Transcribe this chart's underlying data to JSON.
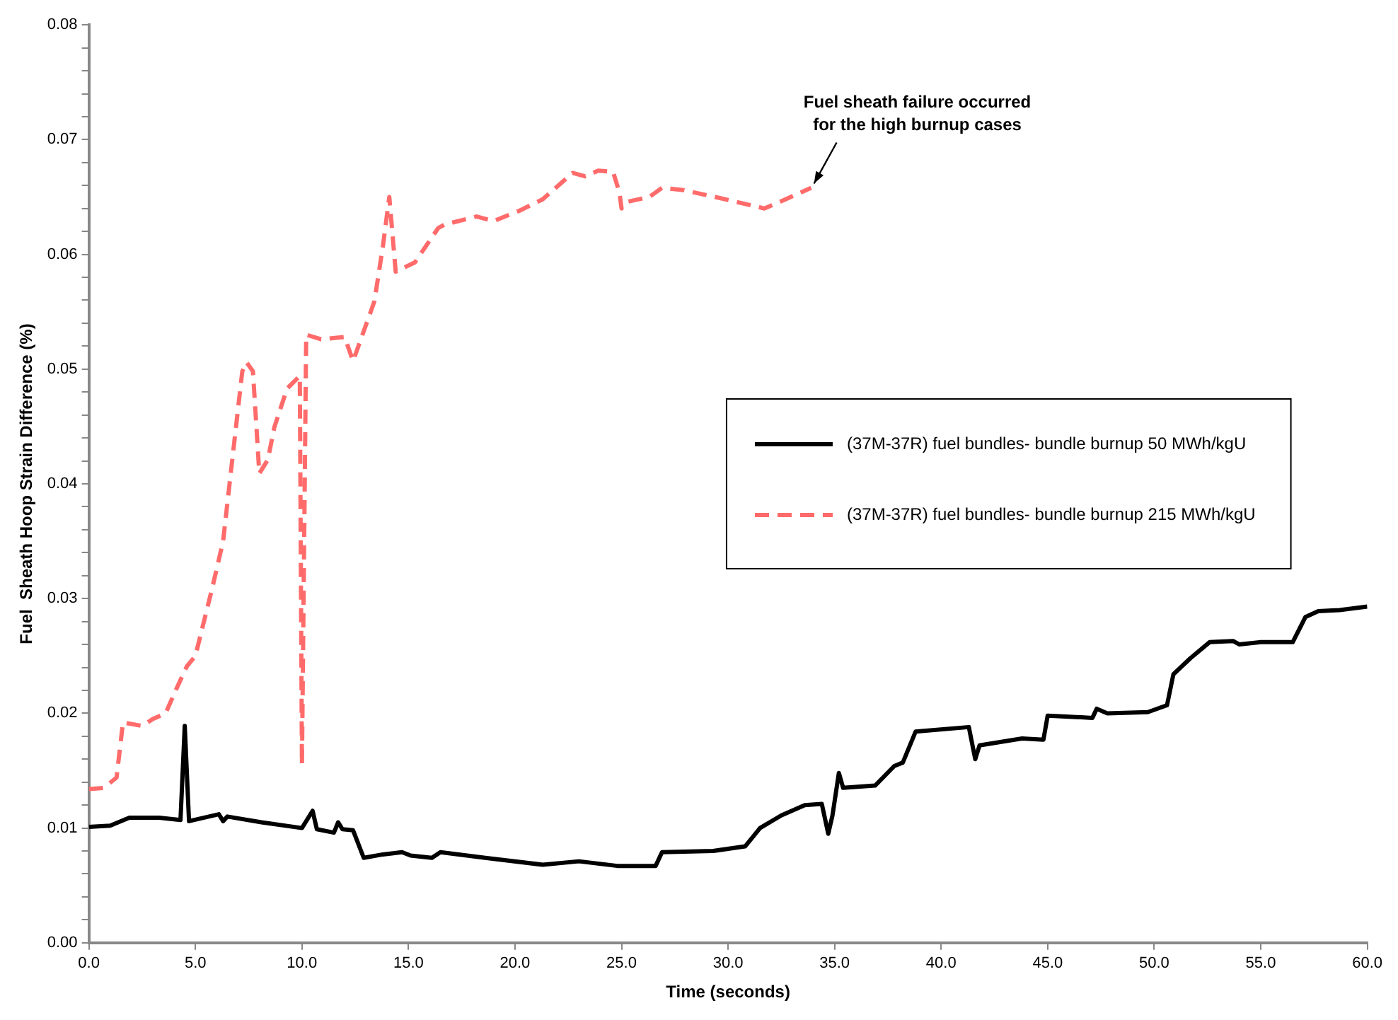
{
  "chart_data": {
    "type": "line",
    "xlabel": "Time (seconds)",
    "ylabel": "Fuel  Sheath Hoop Strain Difference (%)",
    "xlim": [
      0,
      60
    ],
    "xticks": [
      {
        "value": 0,
        "label": "0.0"
      },
      {
        "value": 5,
        "label": "5.0"
      },
      {
        "value": 10,
        "label": "10.0"
      },
      {
        "value": 15,
        "label": "15.0"
      },
      {
        "value": 20,
        "label": "20.0"
      },
      {
        "value": 25,
        "label": "25.0"
      },
      {
        "value": 30,
        "label": "30.0"
      },
      {
        "value": 35,
        "label": "35.0"
      },
      {
        "value": 40,
        "label": "40.0"
      },
      {
        "value": 45,
        "label": "45.0"
      },
      {
        "value": 50,
        "label": "50.0"
      },
      {
        "value": 55,
        "label": "55.0"
      },
      {
        "value": 60,
        "label": "60.0"
      }
    ],
    "ylim": [
      0,
      0.08
    ],
    "yticks": [
      {
        "value": 0,
        "label": "0.00"
      },
      {
        "value": 0.002,
        "label": null
      },
      {
        "value": 0.004,
        "label": null
      },
      {
        "value": 0.006,
        "label": null
      },
      {
        "value": 0.008,
        "label": null
      },
      {
        "value": 0.01,
        "label": "0.01"
      },
      {
        "value": 0.012,
        "label": null
      },
      {
        "value": 0.014,
        "label": null
      },
      {
        "value": 0.016,
        "label": null
      },
      {
        "value": 0.018,
        "label": null
      },
      {
        "value": 0.02,
        "label": "0.02"
      },
      {
        "value": 0.022,
        "label": null
      },
      {
        "value": 0.024,
        "label": null
      },
      {
        "value": 0.026,
        "label": null
      },
      {
        "value": 0.028,
        "label": null
      },
      {
        "value": 0.03,
        "label": "0.03"
      },
      {
        "value": 0.032,
        "label": null
      },
      {
        "value": 0.034,
        "label": null
      },
      {
        "value": 0.036,
        "label": null
      },
      {
        "value": 0.038,
        "label": null
      },
      {
        "value": 0.04,
        "label": "0.04"
      },
      {
        "value": 0.042,
        "label": null
      },
      {
        "value": 0.044,
        "label": null
      },
      {
        "value": 0.046,
        "label": null
      },
      {
        "value": 0.048,
        "label": null
      },
      {
        "value": 0.05,
        "label": "0.05"
      },
      {
        "value": 0.052,
        "label": null
      },
      {
        "value": 0.054,
        "label": null
      },
      {
        "value": 0.056,
        "label": null
      },
      {
        "value": 0.058,
        "label": null
      },
      {
        "value": 0.06,
        "label": "0.06"
      },
      {
        "value": 0.062,
        "label": null
      },
      {
        "value": 0.064,
        "label": null
      },
      {
        "value": 0.066,
        "label": null
      },
      {
        "value": 0.068,
        "label": null
      },
      {
        "value": 0.07,
        "label": "0.07"
      },
      {
        "value": 0.072,
        "label": null
      },
      {
        "value": 0.074,
        "label": null
      },
      {
        "value": 0.076,
        "label": null
      },
      {
        "value": 0.078,
        "label": null
      },
      {
        "value": 0.08,
        "label": "0.08"
      }
    ],
    "grid": false,
    "legend": "right",
    "marker": "none",
    "annotations": [
      {
        "text": "Fuel sheath failure occurred\nfor the high burnup cases",
        "x": 33.9,
        "y": 0.0658
      }
    ],
    "series": [
      {
        "name": "(37M-37R) fuel bundles- bundle burnup 50 MWh/kgU",
        "color": "#000000",
        "line_style": "solid",
        "x": [
          0,
          1,
          1.9,
          3.3,
          4.3,
          4.5,
          4.7,
          6.1,
          6.3,
          6.5,
          8.1,
          10,
          10.5,
          10.7,
          11.5,
          11.7,
          11.9,
          12.4,
          12.9,
          13.8,
          14.7,
          15.1,
          16.1,
          16.5,
          18.6,
          21.3,
          23,
          24.8,
          26.6,
          26.9,
          29.3,
          30.8,
          31.5,
          32.5,
          33.6,
          34.4,
          34.7,
          34.9,
          35.2,
          35.4,
          36.9,
          37.8,
          38.2,
          38.8,
          41.3,
          41.6,
          41.8,
          43.8,
          44.8,
          45,
          47.1,
          47.3,
          47.8,
          49.7,
          50.6,
          50.9,
          51.7,
          52.6,
          53.7,
          54,
          55,
          56.5,
          57.1,
          57.7,
          58.7,
          60
        ],
        "values": [
          0.0101,
          0.0102,
          0.0109,
          0.0109,
          0.0107,
          0.0189,
          0.0106,
          0.0112,
          0.0106,
          0.011,
          0.0105,
          0.01,
          0.0115,
          0.0099,
          0.0096,
          0.0105,
          0.0099,
          0.0098,
          0.0074,
          0.0077,
          0.0079,
          0.0076,
          0.0074,
          0.0079,
          0.0074,
          0.0068,
          0.0071,
          0.0067,
          0.0067,
          0.0079,
          0.008,
          0.0084,
          0.01,
          0.0111,
          0.012,
          0.0121,
          0.0095,
          0.0111,
          0.0148,
          0.0135,
          0.0137,
          0.0154,
          0.0157,
          0.0184,
          0.0188,
          0.016,
          0.0172,
          0.0178,
          0.0177,
          0.0198,
          0.0196,
          0.0204,
          0.02,
          0.0201,
          0.0207,
          0.0234,
          0.0248,
          0.0262,
          0.0263,
          0.026,
          0.0262,
          0.0262,
          0.0284,
          0.0289,
          0.029,
          0.0293
        ]
      },
      {
        "name": "(37M-37R) fuel bundles- bundle burnup 215 MWh/kgU",
        "color": "#ff6b6b",
        "line_style": "dashed",
        "x": [
          0,
          0.7,
          1.3,
          1.6,
          2.5,
          3,
          3.6,
          4.1,
          4.6,
          5,
          5.8,
          6.3,
          6.7,
          7.2,
          7.4,
          7.7,
          8,
          8.4,
          8.7,
          9.3,
          9.9,
          10,
          10.2,
          10.9,
          12,
          12.4,
          13.4,
          13.8,
          14.1,
          14.4,
          15.3,
          16.4,
          16.7,
          18.2,
          19,
          20.2,
          21.3,
          22.7,
          23.3,
          23.9,
          24.6,
          24.9,
          25,
          25.3,
          26.3,
          26.9,
          27.9,
          29.4,
          31.7,
          32.7,
          33.9
        ],
        "values": [
          0.0134,
          0.0135,
          0.0144,
          0.0192,
          0.0189,
          0.0195,
          0.02,
          0.0221,
          0.0241,
          0.025,
          0.031,
          0.035,
          0.0416,
          0.0498,
          0.0506,
          0.0498,
          0.0409,
          0.0421,
          0.0449,
          0.0483,
          0.0494,
          0.0155,
          0.053,
          0.0526,
          0.0528,
          0.0507,
          0.0559,
          0.0607,
          0.065,
          0.0585,
          0.0593,
          0.0623,
          0.0626,
          0.0633,
          0.0629,
          0.0638,
          0.0648,
          0.0671,
          0.0668,
          0.0673,
          0.0672,
          0.0654,
          0.064,
          0.0646,
          0.065,
          0.0658,
          0.0656,
          0.065,
          0.064,
          0.0648,
          0.0658
        ]
      }
    ]
  }
}
